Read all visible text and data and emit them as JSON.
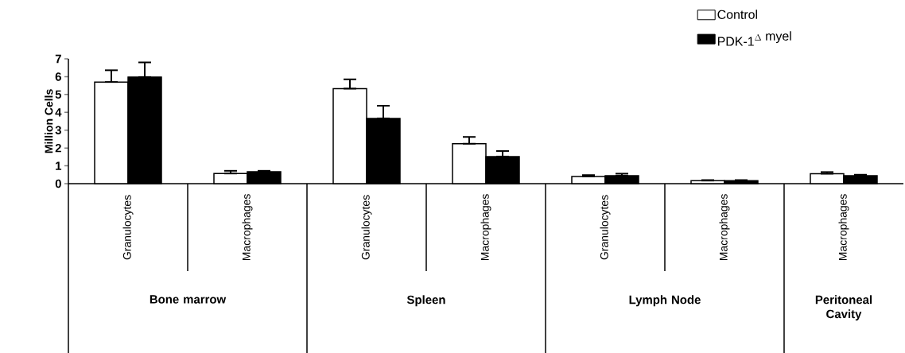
{
  "chart_data": {
    "type": "bar",
    "ylabel": "Million Cells",
    "categories": [
      "Granulocytes",
      "Macrophages",
      "Granulocytes",
      "Macrophages",
      "Granulocytes",
      "Macrophages",
      "Macrophages"
    ],
    "series": [
      {
        "name": "Control",
        "color": "#ffffff",
        "values": [
          5.7,
          0.57,
          5.33,
          2.24,
          0.4,
          0.17,
          0.56
        ],
        "errors": [
          [
            5.7,
            6.36
          ],
          [
            0.57,
            0.72
          ],
          [
            5.33,
            5.85
          ],
          [
            2.24,
            2.62
          ],
          [
            0.4,
            0.48
          ],
          [
            0.17,
            0.2
          ],
          [
            0.56,
            0.65
          ]
        ]
      },
      {
        "name": "\\mbox{PDK-1}^{\\Delta\\ \\mbox{myel}}",
        "color": "#000000",
        "values": [
          5.98,
          0.67,
          3.66,
          1.52,
          0.44,
          0.17,
          0.44
        ],
        "errors": [
          [
            5.98,
            6.8
          ],
          [
            0.67,
            0.72
          ],
          [
            3.66,
            4.37
          ],
          [
            1.52,
            1.83
          ],
          [
            0.44,
            0.56
          ],
          [
            0.17,
            0.2
          ],
          [
            0.44,
            0.5
          ]
        ]
      }
    ],
    "ylim": [
      0,
      7
    ],
    "yticks": [
      0,
      1,
      2,
      3,
      4,
      5,
      6,
      7
    ],
    "legend": "top right",
    "annotations": [
      "Bone marrow",
      "Spleen",
      "Lymph Node",
      "Peritoneal Cavity"
    ]
  }
}
